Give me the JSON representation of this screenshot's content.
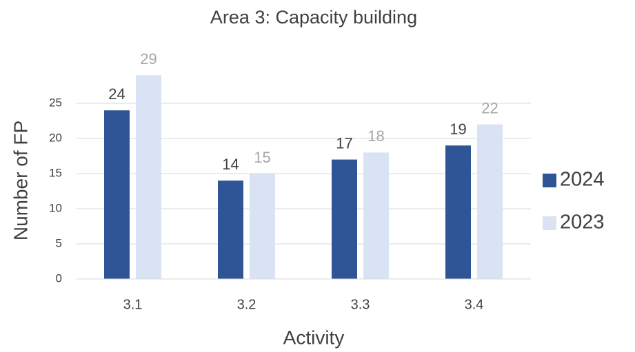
{
  "chart_data": {
    "type": "bar",
    "title": "Area 3: Capacity building",
    "x_label": "Activity",
    "y_label": "Number of FP",
    "categories": [
      "3.1",
      "3.2",
      "3.3",
      "3.4"
    ],
    "series": [
      {
        "name": "2024",
        "color": "#2f5597",
        "label_color": "#404040",
        "values": [
          24,
          14,
          17,
          19
        ]
      },
      {
        "name": "2023",
        "color": "#dae3f3",
        "label_color": "#a6a6a6",
        "values": [
          29,
          15,
          18,
          22
        ]
      }
    ],
    "ylim": [
      0,
      30
    ],
    "yticks": [
      0,
      5,
      10,
      15,
      20,
      25
    ],
    "grid": true,
    "legend": "right"
  }
}
